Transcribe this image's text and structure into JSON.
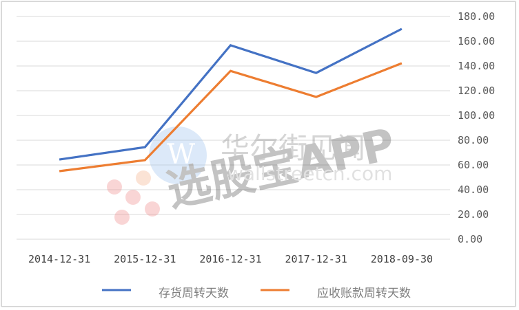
{
  "chart_data": {
    "type": "line",
    "title": "",
    "xlabel": "",
    "ylabel": "",
    "categories": [
      "2014-12-31",
      "2015-12-31",
      "2016-12-31",
      "2017-12-31",
      "2018-09-30"
    ],
    "series": [
      {
        "name": "存货周转天数",
        "color": "#4472c4",
        "values": [
          64.4,
          74.4,
          156.7,
          134.4,
          170.0
        ]
      },
      {
        "name": "应收账款周转天数",
        "color": "#ed7d31",
        "values": [
          55.0,
          63.9,
          136.0,
          115.0,
          142.2
        ]
      }
    ],
    "ylim": [
      0,
      180
    ],
    "yticks": [
      "0.00",
      "20.00",
      "40.00",
      "60.00",
      "80.00",
      "100.00",
      "120.00",
      "140.00",
      "160.00",
      "180.00"
    ],
    "y_axis_position": "right",
    "grid": true,
    "legend_position": "bottom"
  },
  "legend": {
    "series1": "存货周转天数",
    "series2": "应收账款周转天数"
  },
  "watermark": {
    "text_main": "选股宝APP",
    "text_sub": "华尔街见闻",
    "url": "wallstreetcn.com"
  }
}
